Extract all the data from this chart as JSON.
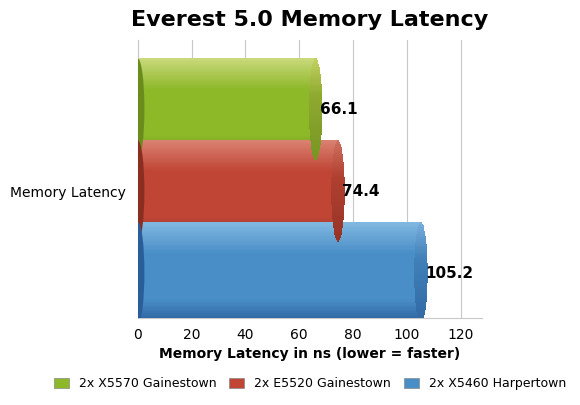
{
  "title": "Everest 5.0 Memory Latency",
  "series": [
    {
      "label": "2x X5570 Gainestown",
      "value": 66.1,
      "color_top": "#C8D87A",
      "color_mid": "#8DB828",
      "color_bot": "#6A8C1C",
      "color_end_mid": "#8FAA30",
      "color_end_hi": "#C2D060"
    },
    {
      "label": "2x E5520 Gainestown",
      "value": 74.4,
      "color_top": "#D98070",
      "color_mid": "#C04535",
      "color_bot": "#8B2E22",
      "color_end_mid": "#B04030",
      "color_end_hi": "#D07060"
    },
    {
      "label": "2x X5460 Harpertown",
      "value": 105.2,
      "color_top": "#80B8E0",
      "color_mid": "#4A8EC8",
      "color_bot": "#2A5E9A",
      "color_end_mid": "#4080B8",
      "color_end_hi": "#78AEDD"
    }
  ],
  "xlabel": "Memory Latency in ns (lower = faster)",
  "ylabel": "Memory Latency",
  "xlim": [
    0,
    128
  ],
  "xticks": [
    0,
    20,
    40,
    60,
    80,
    100,
    120
  ],
  "background_color": "#FFFFFF",
  "grid_color": "#C8C8C8",
  "title_fontsize": 16,
  "axis_label_fontsize": 10,
  "tick_fontsize": 10,
  "value_fontsize": 11,
  "legend_fontsize": 9
}
